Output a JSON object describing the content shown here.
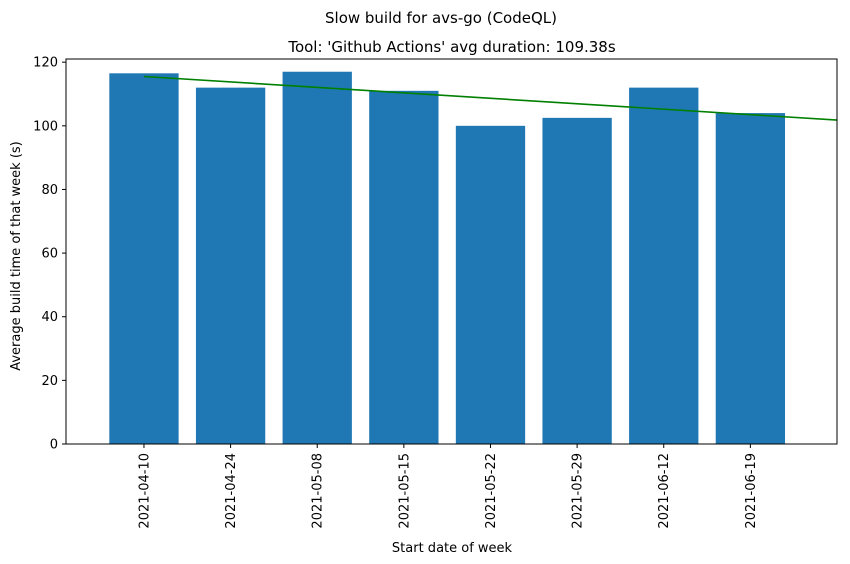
{
  "chart_data": {
    "type": "bar",
    "suptitle": "Slow build for avs-go (CodeQL)",
    "title": "Tool: 'Github Actions' avg duration: 109.38s",
    "xlabel": "Start date of week",
    "ylabel": "Average build time of that week (s)",
    "categories": [
      "2021-04-10",
      "2021-04-24",
      "2021-05-08",
      "2021-05-15",
      "2021-05-22",
      "2021-05-29",
      "2021-06-12",
      "2021-06-19"
    ],
    "values": [
      116.5,
      112.0,
      117.0,
      111.0,
      100.0,
      102.5,
      112.0,
      104.0
    ],
    "ylim": [
      0,
      121
    ],
    "yticks": [
      0,
      20,
      40,
      60,
      80,
      100,
      120
    ],
    "trend": {
      "start": 115.5,
      "end": 101.8
    },
    "bar_color": "#1f77b4",
    "trend_color": "#008000",
    "grid": false,
    "legend": "none"
  }
}
